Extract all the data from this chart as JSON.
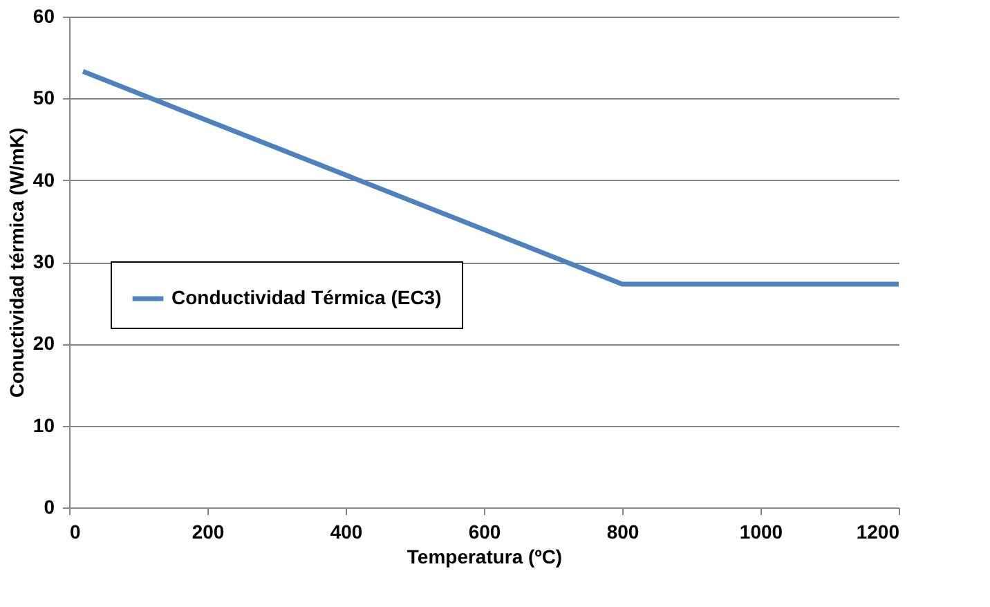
{
  "chart_data": {
    "type": "line",
    "xlabel": "Temperatura (ºC)",
    "ylabel": "Conuctividad térmica (W/mK)",
    "x": [
      20,
      800,
      1200
    ],
    "series": [
      {
        "name": "Conductividad Térmica (EC3)",
        "color": "#4f81bd",
        "values": [
          53.3,
          27.3,
          27.3
        ]
      }
    ],
    "xlim": [
      0,
      1200
    ],
    "xticks": [
      0,
      200,
      400,
      600,
      800,
      1000,
      1200
    ],
    "ylim": [
      0,
      60
    ],
    "yticks": [
      0,
      10,
      20,
      30,
      40,
      50,
      60
    ],
    "grid": "y",
    "legend": "left",
    "marker": "none",
    "line_style": "solid"
  }
}
